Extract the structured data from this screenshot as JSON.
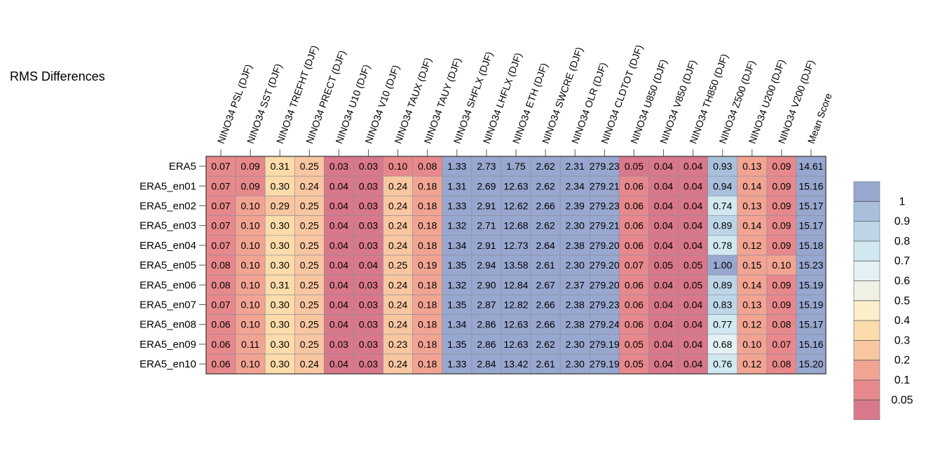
{
  "chart_data": {
    "type": "heatmap",
    "title": "RMS Differences",
    "columns": [
      "NINO34 PSL (DJF)",
      "NINO34 SST (DJF)",
      "NINO34 TREFHT (DJF)",
      "NINO34 PRECT (DJF)",
      "NINO34 U10 (DJF)",
      "NINO34 V10 (DJF)",
      "NINO34 TAUX (DJF)",
      "NINO34 TAUY (DJF)",
      "NINO34 SHFLX (DJF)",
      "NINO34 LHFLX (DJF)",
      "NINO34 ETH (DJF)",
      "NINO34 SWCRE (DJF)",
      "NINO34 OLR (DJF)",
      "NINO34 CLDTOT (DJF)",
      "NINO34 U850 (DJF)",
      "NINO34 V850 (DJF)",
      "NINO34 TH850 (DJF)",
      "NINO34 Z500 (DJF)",
      "NINO34 U200 (DJF)",
      "NINO34 V200 (DJF)",
      "Mean Score"
    ],
    "rows": [
      "ERA5",
      "ERA5_en01",
      "ERA5_en02",
      "ERA5_en03",
      "ERA5_en04",
      "ERA5_en05",
      "ERA5_en06",
      "ERA5_en07",
      "ERA5_en08",
      "ERA5_en09",
      "ERA5_en10"
    ],
    "values": [
      [
        "0.07",
        "0.09",
        "0.31",
        "0.25",
        "0.03",
        "0.03",
        "0.10",
        "0.08",
        "1.33",
        "2.73",
        "1.75",
        "2.62",
        "2.31",
        "279.23",
        "0.05",
        "0.04",
        "0.04",
        "0.93",
        "0.13",
        "0.09",
        "14.61"
      ],
      [
        "0.07",
        "0.09",
        "0.30",
        "0.24",
        "0.04",
        "0.03",
        "0.24",
        "0.18",
        "1.31",
        "2.69",
        "12.63",
        "2.62",
        "2.34",
        "279.21",
        "0.06",
        "0.04",
        "0.04",
        "0.94",
        "0.14",
        "0.09",
        "15.16"
      ],
      [
        "0.07",
        "0.10",
        "0.29",
        "0.25",
        "0.04",
        "0.03",
        "0.24",
        "0.18",
        "1.33",
        "2.91",
        "12.62",
        "2.66",
        "2.39",
        "279.23",
        "0.06",
        "0.04",
        "0.04",
        "0.74",
        "0.13",
        "0.09",
        "15.17"
      ],
      [
        "0.07",
        "0.10",
        "0.30",
        "0.25",
        "0.04",
        "0.03",
        "0.24",
        "0.18",
        "1.32",
        "2.71",
        "12.68",
        "2.62",
        "2.30",
        "279.21",
        "0.06",
        "0.04",
        "0.04",
        "0.89",
        "0.14",
        "0.09",
        "15.17"
      ],
      [
        "0.07",
        "0.10",
        "0.30",
        "0.25",
        "0.04",
        "0.03",
        "0.24",
        "0.18",
        "1.34",
        "2.91",
        "12.73",
        "2.64",
        "2.38",
        "279.20",
        "0.06",
        "0.04",
        "0.04",
        "0.78",
        "0.12",
        "0.09",
        "15.18"
      ],
      [
        "0.08",
        "0.10",
        "0.30",
        "0.25",
        "0.04",
        "0.04",
        "0.25",
        "0.19",
        "1.35",
        "2.94",
        "13.58",
        "2.61",
        "2.30",
        "279.20",
        "0.07",
        "0.05",
        "0.05",
        "1.00",
        "0.15",
        "0.10",
        "15.23"
      ],
      [
        "0.08",
        "0.10",
        "0.31",
        "0.25",
        "0.04",
        "0.03",
        "0.24",
        "0.18",
        "1.32",
        "2.90",
        "12.84",
        "2.67",
        "2.37",
        "279.20",
        "0.06",
        "0.04",
        "0.05",
        "0.89",
        "0.14",
        "0.09",
        "15.19"
      ],
      [
        "0.07",
        "0.10",
        "0.30",
        "0.25",
        "0.04",
        "0.03",
        "0.24",
        "0.18",
        "1.35",
        "2.87",
        "12.82",
        "2.66",
        "2.38",
        "279.23",
        "0.06",
        "0.04",
        "0.04",
        "0.83",
        "0.13",
        "0.09",
        "15.19"
      ],
      [
        "0.06",
        "0.10",
        "0.30",
        "0.25",
        "0.04",
        "0.03",
        "0.24",
        "0.18",
        "1.34",
        "2.86",
        "12.63",
        "2.66",
        "2.38",
        "279.24",
        "0.06",
        "0.04",
        "0.04",
        "0.77",
        "0.12",
        "0.08",
        "15.17"
      ],
      [
        "0.06",
        "0.11",
        "0.30",
        "0.25",
        "0.03",
        "0.03",
        "0.23",
        "0.18",
        "1.35",
        "2.86",
        "12.63",
        "2.62",
        "2.30",
        "279.19",
        "0.05",
        "0.04",
        "0.04",
        "0.68",
        "0.10",
        "0.07",
        "15.16"
      ],
      [
        "0.06",
        "0.10",
        "0.30",
        "0.24",
        "0.04",
        "0.03",
        "0.24",
        "0.18",
        "1.33",
        "2.84",
        "13.42",
        "2.61",
        "2.30",
        "279.19",
        "0.05",
        "0.04",
        "0.04",
        "0.76",
        "0.12",
        "0.08",
        "15.20"
      ]
    ],
    "colorbar": {
      "tick_labels": [
        "1",
        "0.9",
        "0.8",
        "0.7",
        "0.6",
        "0.5",
        "0.4",
        "0.3",
        "0.2",
        "0.1",
        "0.05"
      ],
      "bins": [
        ">1",
        "0.9-1",
        "0.8-0.9",
        "0.7-0.8",
        "0.6-0.7",
        "0.5-0.6",
        "0.4-0.5",
        "0.3-0.4",
        "0.2-0.3",
        "0.1-0.2",
        "0.05-0.1",
        "<0.05"
      ],
      "colors": [
        "#98a7cf",
        "#a8c0dc",
        "#bdd6e7",
        "#d2e8f0",
        "#e4f1f4",
        "#f1f1e6",
        "#fbefc9",
        "#fbdcaa",
        "#f8c6a1",
        "#f2a493",
        "#e7898c",
        "#d9788a"
      ]
    },
    "cell_bins": [
      [
        10,
        10,
        7,
        8,
        11,
        11,
        10,
        10,
        0,
        0,
        0,
        0,
        0,
        0,
        11,
        11,
        11,
        1,
        9,
        10,
        0
      ],
      [
        10,
        10,
        7,
        8,
        11,
        11,
        8,
        9,
        0,
        0,
        0,
        0,
        0,
        0,
        10,
        11,
        11,
        1,
        9,
        10,
        0
      ],
      [
        10,
        9,
        8,
        8,
        11,
        11,
        8,
        9,
        0,
        0,
        0,
        0,
        0,
        0,
        10,
        11,
        11,
        3,
        9,
        10,
        0
      ],
      [
        10,
        9,
        7,
        8,
        11,
        11,
        8,
        9,
        0,
        0,
        0,
        0,
        0,
        0,
        10,
        11,
        11,
        2,
        9,
        10,
        0
      ],
      [
        10,
        9,
        7,
        8,
        11,
        11,
        8,
        9,
        0,
        0,
        0,
        0,
        0,
        0,
        10,
        11,
        11,
        3,
        9,
        10,
        0
      ],
      [
        10,
        9,
        7,
        8,
        11,
        11,
        8,
        9,
        0,
        0,
        0,
        0,
        0,
        0,
        10,
        11,
        11,
        0,
        9,
        9,
        0
      ],
      [
        10,
        9,
        7,
        8,
        11,
        11,
        8,
        9,
        0,
        0,
        0,
        0,
        0,
        0,
        10,
        11,
        11,
        2,
        9,
        10,
        0
      ],
      [
        10,
        9,
        7,
        8,
        11,
        11,
        8,
        9,
        0,
        0,
        0,
        0,
        0,
        0,
        10,
        11,
        11,
        2,
        9,
        10,
        0
      ],
      [
        10,
        9,
        7,
        8,
        11,
        11,
        8,
        9,
        0,
        0,
        0,
        0,
        0,
        0,
        10,
        11,
        11,
        3,
        9,
        10,
        0
      ],
      [
        10,
        9,
        7,
        8,
        11,
        11,
        8,
        9,
        0,
        0,
        0,
        0,
        0,
        0,
        10,
        11,
        11,
        4,
        9,
        10,
        0
      ],
      [
        10,
        9,
        7,
        8,
        11,
        11,
        8,
        9,
        0,
        0,
        0,
        0,
        0,
        0,
        10,
        11,
        11,
        3,
        9,
        10,
        0
      ]
    ]
  }
}
